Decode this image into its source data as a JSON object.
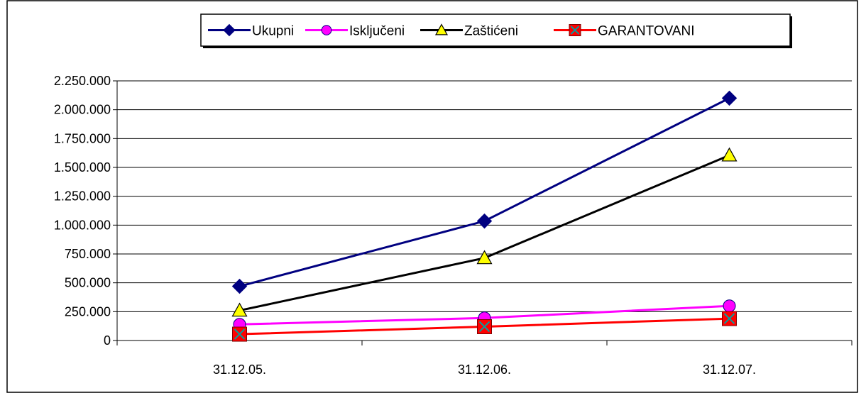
{
  "chart_data": {
    "type": "line",
    "title": "",
    "xlabel": "",
    "ylabel": "",
    "categories": [
      "31.12.05.",
      "31.12.06.",
      "31.12.07."
    ],
    "ylim": [
      0,
      2250000
    ],
    "y_ticks": [
      "0",
      "250.000",
      "500.000",
      "750.000",
      "1.000.000",
      "1.250.000",
      "1.500.000",
      "1.750.000",
      "2.000.000",
      "2.250.000"
    ],
    "grid": "horizontal",
    "legend_position": "top",
    "series": [
      {
        "name": "Ukupni",
        "values": [
          470000,
          1035000,
          2100000
        ],
        "color": "#000080",
        "marker": "diamond",
        "marker_fill": "#000080"
      },
      {
        "name": "Isključeni",
        "values": [
          140000,
          195000,
          300000
        ],
        "color": "#ff00ff",
        "marker": "circle",
        "marker_fill": "#ff00ff"
      },
      {
        "name": "Zaštićeni",
        "values": [
          260000,
          715000,
          1605000
        ],
        "color": "#000000",
        "marker": "triangle",
        "marker_fill": "#ffff00"
      },
      {
        "name": "GARANTOVANI",
        "values": [
          55000,
          120000,
          190000
        ],
        "color": "#ff0000",
        "marker": "square-x",
        "marker_fill": "#ff0000"
      }
    ]
  }
}
